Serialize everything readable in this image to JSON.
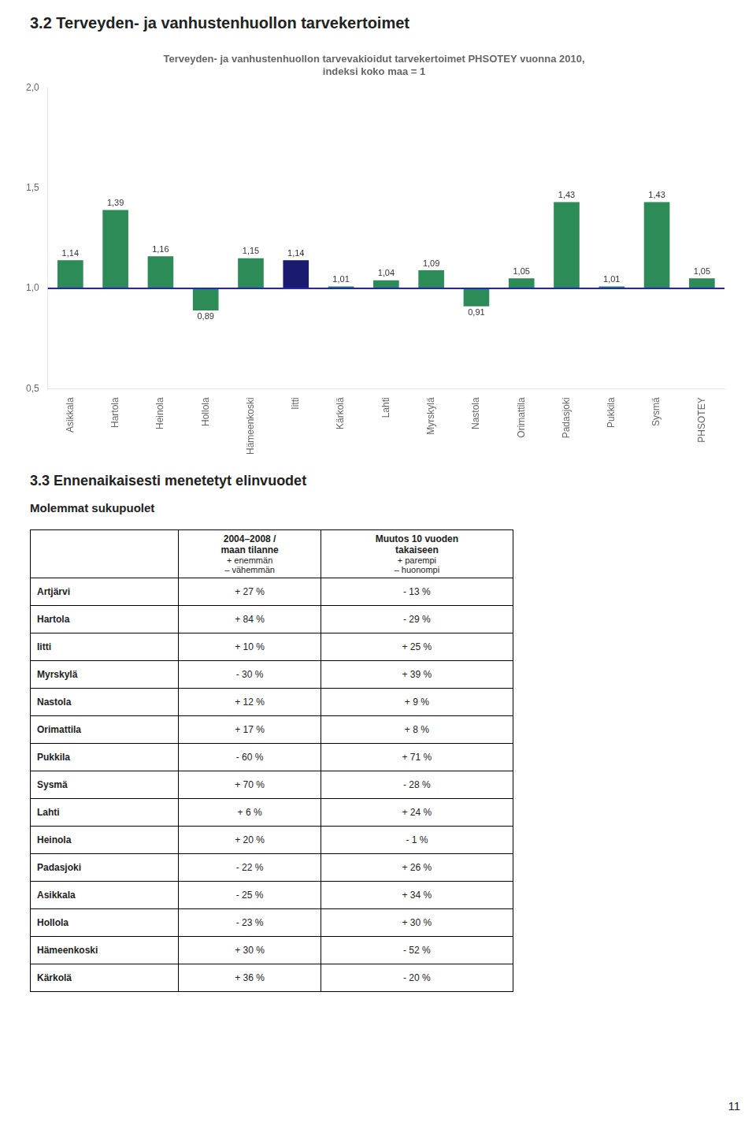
{
  "page_title": "3.2 Terveyden- ja vanhustenhuollon tarvekertoimet",
  "chart_data": {
    "type": "bar",
    "title": "Terveyden- ja vanhustenhuollon tarvevakioidut tarvekertoimet PHSOTEY vuonna 2010,\nindeksi koko maa = 1",
    "categories": [
      "Asikkala",
      "Hartola",
      "Heinola",
      "Hollola",
      "Hämeenkoski",
      "Iitti",
      "Kärkolä",
      "Lahti",
      "Myrskylä",
      "Nastola",
      "Orimattila",
      "Padasjoki",
      "Pukkila",
      "Sysmä",
      "PHSOTEY"
    ],
    "values": [
      1.14,
      1.39,
      1.16,
      0.89,
      1.15,
      1.14,
      1.01,
      1.04,
      1.09,
      0.91,
      1.05,
      1.43,
      1.01,
      1.43,
      1.05
    ],
    "value_labels": [
      "1,14",
      "1,39",
      "1,16",
      "0,89",
      "1,15",
      "1,14",
      "1,01",
      "1,04",
      "1,09",
      "0,91",
      "1,05",
      "1,43",
      "1,01",
      "1,43",
      "1,05"
    ],
    "colors": [
      "#2d8b57",
      "#2d8b57",
      "#2d8b57",
      "#2d8b57",
      "#2d8b57",
      "#1a1a6e",
      "#2d8b57",
      "#2d8b57",
      "#2d8b57",
      "#2d8b57",
      "#2d8b57",
      "#2d8b57",
      "#2d8b57",
      "#2d8b57",
      "#2d8b57"
    ],
    "baseline": {
      "value": 1,
      "color": "#2222cc"
    },
    "ylim": [
      0.5,
      2.0
    ],
    "yticks": [
      {
        "value": 0.5,
        "label": "0,5"
      },
      {
        "value": 1.0,
        "label": "1,0"
      },
      {
        "value": 1.5,
        "label": "1,5"
      },
      {
        "value": 2.0,
        "label": "2,0"
      }
    ],
    "grid": false,
    "data_labels": true
  },
  "section_title": "3.3 Ennenaikaisesti menetetyt elinvuodet",
  "subtitle": "Molemmat sukupuolet",
  "table": {
    "columns": [
      [
        "2004–2008 /",
        "maan tilanne",
        "+ enemmän",
        "– vähemmän"
      ],
      [
        "Muutos 10 vuoden",
        "takaiseen",
        "+ parempi",
        "– huonompi"
      ]
    ],
    "rows": [
      [
        "Artjärvi",
        "+ 27 %",
        "- 13 %"
      ],
      [
        "Hartola",
        "+ 84 %",
        "- 29 %"
      ],
      [
        "Iitti",
        "+ 10 %",
        "+ 25 %"
      ],
      [
        "Myrskylä",
        "- 30 %",
        "+ 39 %"
      ],
      [
        "Nastola",
        "+ 12 %",
        "+ 9 %"
      ],
      [
        "Orimattila",
        "+ 17 %",
        "+ 8 %"
      ],
      [
        "Pukkila",
        "- 60 %",
        "+ 71 %"
      ],
      [
        "Sysmä",
        "+ 70 %",
        "- 28 %"
      ],
      [
        "Lahti",
        "+ 6 %",
        "+ 24 %"
      ],
      [
        "Heinola",
        "+ 20 %",
        "- 1 %"
      ],
      [
        "Padasjoki",
        "- 22 %",
        "+ 26 %"
      ],
      [
        "Asikkala",
        "- 25 %",
        "+ 34 %"
      ],
      [
        "Hollola",
        "- 23 %",
        "+ 30 %"
      ],
      [
        "Hämeenkoski",
        "+ 30 %",
        "- 52 %"
      ],
      [
        "Kärkolä",
        "+ 36 %",
        "- 20 %"
      ]
    ]
  },
  "page_number": "11"
}
